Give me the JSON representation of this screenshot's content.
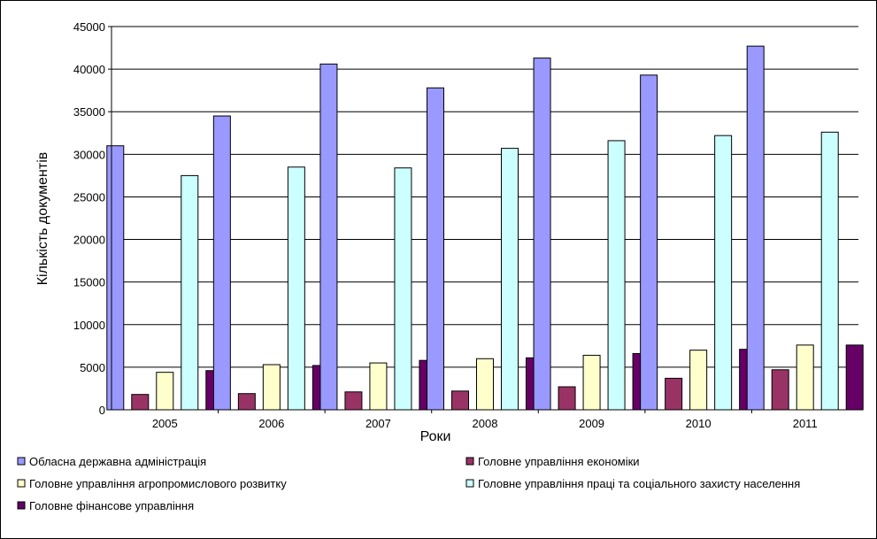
{
  "chart_data": {
    "type": "bar",
    "xlabel": "Роки",
    "ylabel": "Кількість документів",
    "ylim": [
      0,
      45000
    ],
    "yticks": [
      0,
      5000,
      10000,
      15000,
      20000,
      25000,
      30000,
      35000,
      40000,
      45000
    ],
    "grid": true,
    "legend_position": "bottom",
    "categories": [
      "2005",
      "2006",
      "2007",
      "2008",
      "2009",
      "2010",
      "2011"
    ],
    "series": [
      {
        "name": "Обласна державна адміністрація",
        "color": "#9999ff",
        "values": [
          31000,
          34500,
          40600,
          37800,
          41300,
          39300,
          42700
        ]
      },
      {
        "name": "Головне управління економіки",
        "color": "#993366",
        "values": [
          1800,
          1900,
          2100,
          2200,
          2700,
          3700,
          4700
        ]
      },
      {
        "name": "Головне управління агропромислового розвитку",
        "color": "#ffffcc",
        "values": [
          4400,
          5300,
          5500,
          6000,
          6400,
          7000,
          7600
        ]
      },
      {
        "name": "Головне управління праці та соціального захисту населення",
        "color": "#ccffff",
        "values": [
          27500,
          28500,
          28400,
          30700,
          31600,
          32200,
          32600
        ]
      },
      {
        "name": "Головне фінансове управління",
        "color": "#660066",
        "values": [
          4600,
          5200,
          5800,
          6100,
          6600,
          7100,
          7600
        ]
      }
    ]
  }
}
